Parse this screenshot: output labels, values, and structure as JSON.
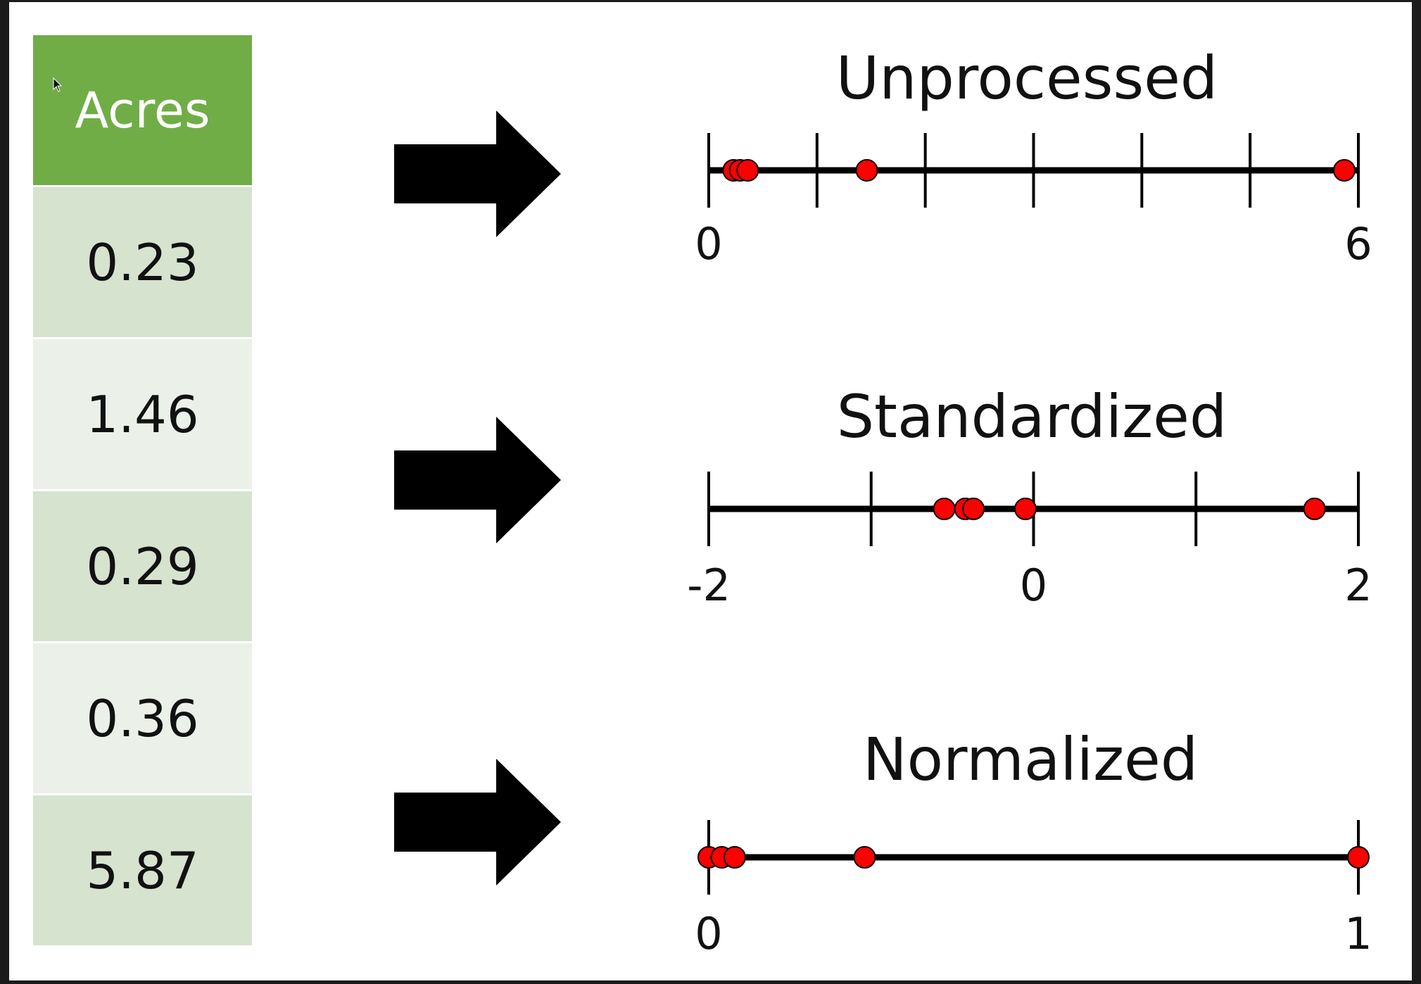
{
  "table": {
    "header": "Acres",
    "values": [
      "0.23",
      "1.46",
      "0.29",
      "0.36",
      "5.87"
    ]
  },
  "colors": {
    "header_bg": "#70ad47",
    "row_dark": "#d5e3cf",
    "row_light": "#ebf1e9",
    "point": "#ff0000"
  },
  "panels": [
    {
      "title": "Unprocessed",
      "range": [
        0,
        6
      ],
      "tick_labels": [
        {
          "value": 0,
          "text": "0"
        },
        {
          "value": 6,
          "text": "6"
        }
      ],
      "ticks": [
        0,
        1,
        2,
        3,
        4,
        5,
        6
      ],
      "points": [
        0.23,
        0.29,
        0.36,
        1.46,
        5.87
      ]
    },
    {
      "title": "Standardized",
      "range": [
        -2,
        2
      ],
      "tick_labels": [
        {
          "value": -2,
          "text": "-2"
        },
        {
          "value": 0,
          "text": "0"
        },
        {
          "value": 2,
          "text": "2"
        }
      ],
      "ticks": [
        -2,
        -1,
        0,
        1,
        2
      ],
      "points": [
        -0.55,
        -0.42,
        -0.37,
        -0.05,
        1.73
      ]
    },
    {
      "title": "Normalized",
      "range": [
        0,
        1
      ],
      "tick_labels": [
        {
          "value": 0,
          "text": "0"
        },
        {
          "value": 1,
          "text": "1"
        }
      ],
      "ticks": [
        0,
        1
      ],
      "points": [
        0.0,
        0.02,
        0.04,
        0.24,
        1.0
      ]
    }
  ]
}
